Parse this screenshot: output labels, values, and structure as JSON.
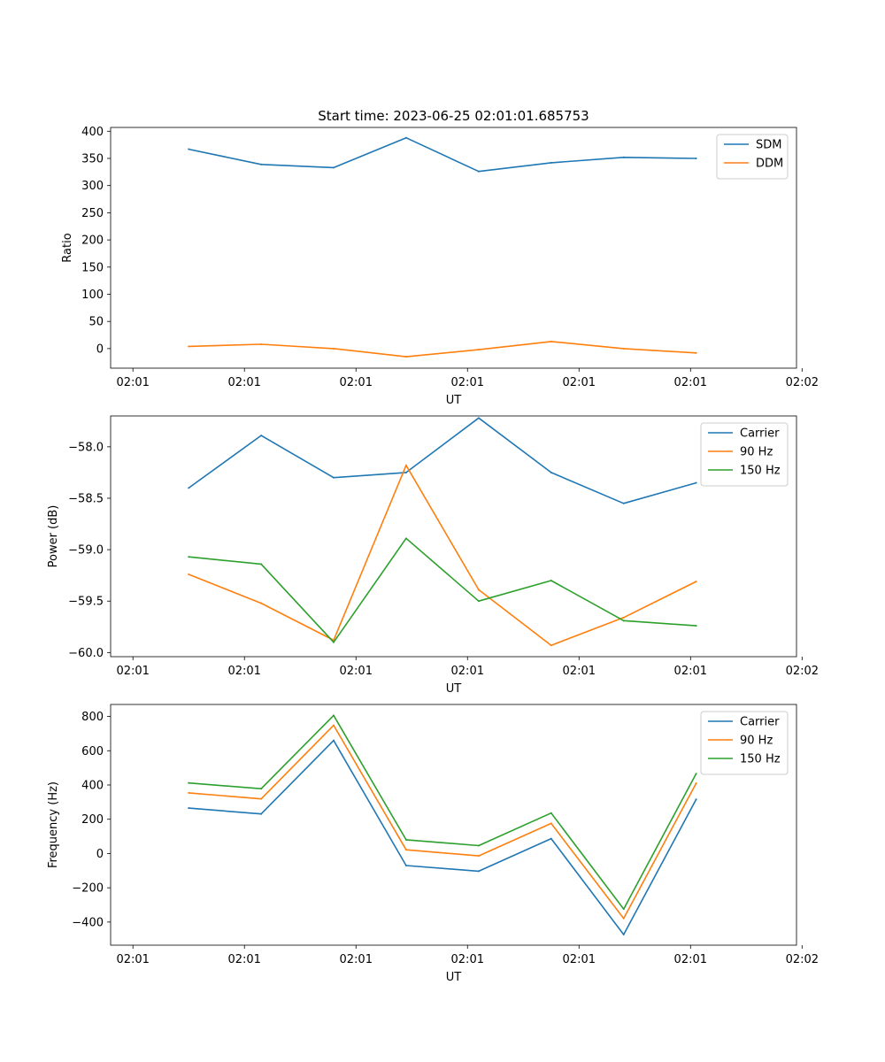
{
  "figure": {
    "title": "Start time: 2023-06-25 02:01:01.685753"
  },
  "chart_data": [
    {
      "type": "line",
      "xlabel": "UT",
      "ylabel": "Ratio",
      "x_tick_labels": [
        "02:01",
        "02:01",
        "02:01",
        "02:01",
        "02:01",
        "02:01",
        "02:02"
      ],
      "ylim": [
        -36,
        407
      ],
      "yticks": [
        0,
        50,
        100,
        150,
        200,
        250,
        300,
        350,
        400
      ],
      "legend": "top-right",
      "x": [
        0.5,
        1.15,
        1.8,
        2.45,
        3.1,
        3.75,
        4.4,
        5.05
      ],
      "series": [
        {
          "name": "SDM",
          "color": "#1f77b4",
          "values": [
            367,
            339,
            333,
            388,
            326,
            342,
            352,
            350
          ]
        },
        {
          "name": "DDM",
          "color": "#ff7f0e",
          "values": [
            4,
            8,
            0,
            -15,
            -2,
            13,
            0,
            -8
          ]
        }
      ]
    },
    {
      "type": "line",
      "xlabel": "UT",
      "ylabel": "Power (dB)",
      "x_tick_labels": [
        "02:01",
        "02:01",
        "02:01",
        "02:01",
        "02:01",
        "02:01",
        "02:02"
      ],
      "ylim": [
        -60.04,
        -57.7
      ],
      "yticks": [
        -60.0,
        -59.5,
        -59.0,
        -58.5,
        -58.0
      ],
      "ytick_labels": [
        "−60.0",
        "−59.5",
        "−59.0",
        "−58.5",
        "−58.0"
      ],
      "legend": "top-right",
      "x": [
        0.5,
        1.15,
        1.8,
        2.45,
        3.1,
        3.75,
        4.4,
        5.05
      ],
      "series": [
        {
          "name": "Carrier",
          "color": "#1f77b4",
          "values": [
            -58.4,
            -57.89,
            -58.3,
            -58.25,
            -57.72,
            -58.25,
            -58.55,
            -58.35
          ]
        },
        {
          "name": "90 Hz",
          "color": "#ff7f0e",
          "values": [
            -59.24,
            -59.52,
            -59.88,
            -58.18,
            -59.39,
            -59.93,
            -59.66,
            -59.31
          ]
        },
        {
          "name": "150 Hz",
          "color": "#2ca02c",
          "values": [
            -59.07,
            -59.14,
            -59.9,
            -58.89,
            -59.5,
            -59.3,
            -59.69,
            -59.74
          ]
        }
      ]
    },
    {
      "type": "line",
      "xlabel": "UT",
      "ylabel": "Frequency (Hz)",
      "x_tick_labels": [
        "02:01",
        "02:01",
        "02:01",
        "02:01",
        "02:01",
        "02:01",
        "02:02"
      ],
      "ylim": [
        -535,
        870
      ],
      "yticks": [
        -400,
        -200,
        0,
        200,
        400,
        600,
        800
      ],
      "ytick_labels": [
        "−400",
        "−200",
        "0",
        "200",
        "400",
        "600",
        "800"
      ],
      "legend": "top-right",
      "x": [
        0.5,
        1.15,
        1.8,
        2.45,
        3.1,
        3.75,
        4.4,
        5.05
      ],
      "series": [
        {
          "name": "Carrier",
          "color": "#1f77b4",
          "values": [
            265,
            231,
            660,
            -70,
            -103,
            87,
            -473,
            316
          ]
        },
        {
          "name": "90 Hz",
          "color": "#ff7f0e",
          "values": [
            354,
            319,
            748,
            22,
            -14,
            176,
            -379,
            410
          ]
        },
        {
          "name": "150 Hz",
          "color": "#2ca02c",
          "values": [
            412,
            378,
            806,
            80,
            46,
            236,
            -324,
            466
          ]
        }
      ]
    }
  ]
}
